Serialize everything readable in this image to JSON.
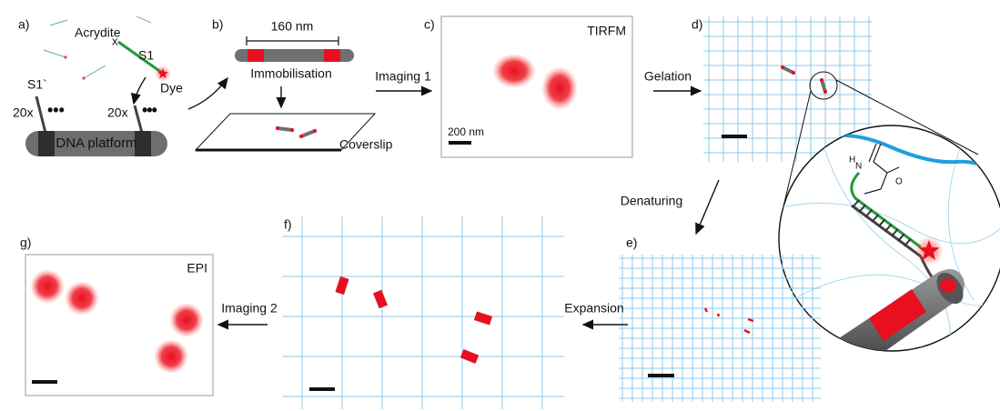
{
  "panels": {
    "a": {
      "label": "a)",
      "acrydite": "Acrydite",
      "strand": "S1",
      "dye": "Dye",
      "complement": "S1`",
      "copies_left": "20x",
      "copies_right": "20x",
      "platform": "DNA platform"
    },
    "b": {
      "label": "b)",
      "length": "160 nm",
      "step": "Immobilisation",
      "surface": "Coverslip"
    },
    "c": {
      "label": "c)",
      "microscope": "TIRFM",
      "scale_bar": "200 nm"
    },
    "d": {
      "label": "d)",
      "chem_n": "N",
      "chem_h": "H",
      "chem_o": "O"
    },
    "e": {
      "label": "e)"
    },
    "f": {
      "label": "f)"
    },
    "g": {
      "label": "g)",
      "microscope": "EPI"
    }
  },
  "arrows": {
    "imaging_1": "Imaging 1",
    "gelation": "Gelation",
    "denaturing": "Denaturing",
    "expansion": "Expansion",
    "imaging_2": "Imaging 2"
  }
}
